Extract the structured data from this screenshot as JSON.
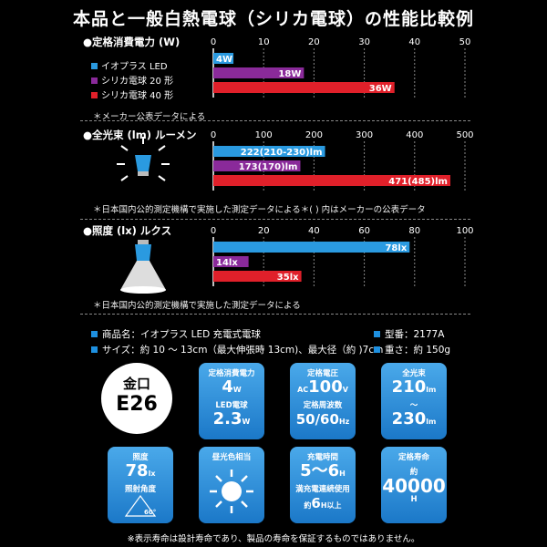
{
  "title": "本品と一般白熱電球（シリカ電球）の性能比較例",
  "legend": [
    {
      "label": "イオプラス LED",
      "color": "#2a9ae0"
    },
    {
      "label": "シリカ電球 20 形",
      "color": "#8a2a9a"
    },
    {
      "label": "シリカ電球 40 形",
      "color": "#e0202a"
    }
  ],
  "chart_data": [
    {
      "type": "bar",
      "title": "●定格消費電力 (W)",
      "xlim": [
        0,
        50
      ],
      "ticks": [
        "0",
        "10",
        "20",
        "30",
        "40",
        "50"
      ],
      "series": [
        {
          "name": "イオプラス LED",
          "value": 4,
          "label": "4W",
          "color": "#2a9ae0"
        },
        {
          "name": "シリカ電球 20 形",
          "value": 18,
          "label": "18W",
          "color": "#8a2a9a"
        },
        {
          "name": "シリカ電球 40 形",
          "value": 36,
          "label": "36W",
          "color": "#e0202a"
        }
      ],
      "note": "＊メーカー公表データによる"
    },
    {
      "type": "bar",
      "title": "●全光束 (lm) ルーメン",
      "xlim": [
        0,
        500
      ],
      "ticks": [
        "0",
        "100",
        "200",
        "300",
        "400",
        "500"
      ],
      "series": [
        {
          "value": 222,
          "label": "222(210-230)lm",
          "color": "#2a9ae0"
        },
        {
          "value": 173,
          "label": "173(170)lm",
          "color": "#8a2a9a"
        },
        {
          "value": 471,
          "label": "471(485)lm",
          "color": "#e0202a"
        }
      ],
      "note": "＊日本国内公的測定機構で実施した測定データによる＊( ) 内はメーカーの公表データ"
    },
    {
      "type": "bar",
      "title": "●照度 (lx) ルクス",
      "xlim": [
        0,
        100
      ],
      "ticks": [
        "0",
        "20",
        "40",
        "60",
        "80",
        "100"
      ],
      "series": [
        {
          "value": 78,
          "label": "78lx",
          "color": "#2a9ae0"
        },
        {
          "value": 14,
          "label": "14lx",
          "color": "#8a2a9a"
        },
        {
          "value": 35,
          "label": "35lx",
          "color": "#e0202a"
        }
      ],
      "note": "＊日本国内公的測定機構で実施した測定データによる"
    }
  ],
  "specs": {
    "product": "商品名：イオプラス LED 充電式電球",
    "model": "型番：2177A",
    "size": "サイズ：約 10 ～ 13cm（最大伸張時 13cm)、最大径（約 )7cm",
    "weight": "重さ：約 150g"
  },
  "base": {
    "line1": "金口",
    "line2": "E26"
  },
  "cards": {
    "power": {
      "caption": "定格消費電力",
      "value1": "4",
      "unit1": "W",
      "mid": "LED電球",
      "value2": "2.3",
      "unit2": "W"
    },
    "voltage": {
      "caption": "定格電圧",
      "prefix": "AC",
      "value1": "100",
      "unit1": "V",
      "mid": "定格周波数",
      "value2": "50/60",
      "unit2": "Hz"
    },
    "flux": {
      "caption": "全光束",
      "value1": "210",
      "unit1": "lm",
      "mid": "～",
      "value2": "230",
      "unit2": "lm"
    },
    "illum": {
      "caption": "照度",
      "value1": "78",
      "unit1": "lx",
      "mid": "照射角度",
      "angle": "60°"
    },
    "color": {
      "caption": "昼光色相当"
    },
    "charge": {
      "caption": "充電時間",
      "value1": "5～6",
      "unit1": "H",
      "mid": "満充電連続使用",
      "prefix2": "約",
      "value2": "6",
      "unit2": "H以上"
    },
    "life": {
      "caption": "定格寿命",
      "prefix": "約",
      "value": "40000",
      "unit": "H"
    }
  },
  "footer": "※表示寿命は設計寿命であり、製品の寿命を保証するものではありません。"
}
